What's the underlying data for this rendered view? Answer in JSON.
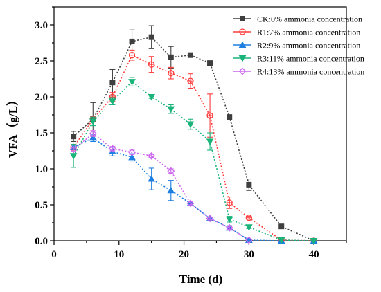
{
  "chart_data": {
    "type": "line",
    "title": "",
    "xlabel": "Time (d)",
    "ylabel": "VFA（g/L）",
    "xlim": [
      0,
      45
    ],
    "ylim": [
      0,
      3.25
    ],
    "xticks": [
      0,
      10,
      20,
      30,
      40
    ],
    "yticks": [
      0.0,
      0.5,
      1.0,
      1.5,
      2.0,
      2.5,
      3.0
    ],
    "grid": false,
    "legend_position": "top-right",
    "series": [
      {
        "name": "CK:0% ammonia concentration",
        "color": "#3f3f3f",
        "marker": "square",
        "x": [
          3,
          6,
          9,
          12,
          15,
          18,
          21,
          24,
          27,
          30,
          35,
          40
        ],
        "y": [
          1.45,
          1.69,
          2.2,
          2.77,
          2.83,
          2.55,
          2.58,
          2.47,
          1.72,
          0.78,
          0.2,
          0.0
        ],
        "err": [
          0.07,
          0.23,
          0.18,
          0.16,
          0.16,
          0.15,
          0.03,
          0.02,
          0.0,
          0.08,
          0.0,
          0.0
        ]
      },
      {
        "name": "R1:7% ammonia concentration",
        "color": "#ff3b3b",
        "marker": "circle",
        "x": [
          3,
          6,
          9,
          12,
          15,
          18,
          21,
          24,
          27,
          30,
          35,
          40
        ],
        "y": [
          1.3,
          1.69,
          2.0,
          2.58,
          2.45,
          2.33,
          2.22,
          1.74,
          0.53,
          0.32,
          0.01,
          0.0
        ],
        "err": [
          0.04,
          0.04,
          0.06,
          0.07,
          0.11,
          0.08,
          0.1,
          0.3,
          0.08,
          0.02,
          0.0,
          0.0
        ]
      },
      {
        "name": "R2:9% ammonia concentration",
        "color": "#1e7fe0",
        "marker": "triangle-up",
        "x": [
          3,
          6,
          9,
          12,
          15,
          18,
          21,
          24,
          27,
          30,
          35,
          40
        ],
        "y": [
          1.3,
          1.43,
          1.24,
          1.16,
          0.86,
          0.7,
          0.52,
          0.31,
          0.18,
          0.01,
          0.0,
          0.0
        ],
        "err": [
          0.03,
          0.05,
          0.06,
          0.05,
          0.15,
          0.14,
          0.02,
          0.02,
          0.03,
          0.0,
          0.0,
          0.0
        ]
      },
      {
        "name": "R3:11% ammonia concentration",
        "color": "#1ab47a",
        "marker": "triangle-down",
        "x": [
          3,
          6,
          9,
          12,
          15,
          18,
          21,
          24,
          27,
          30,
          35,
          40
        ],
        "y": [
          1.18,
          1.66,
          1.94,
          2.21,
          2.0,
          1.83,
          1.62,
          1.38,
          0.3,
          0.19,
          0.01,
          0.0
        ],
        "err": [
          0.16,
          0.06,
          0.05,
          0.06,
          0.02,
          0.06,
          0.07,
          0.12,
          0.04,
          0.02,
          0.0,
          0.0
        ]
      },
      {
        "name": "R4:13% ammonia concentration",
        "color": "#cc66ee",
        "marker": "diamond",
        "x": [
          3,
          6,
          9,
          12,
          15,
          18,
          21,
          24,
          27,
          30
        ],
        "y": [
          1.27,
          1.49,
          1.28,
          1.23,
          1.18,
          0.97,
          0.52,
          0.31,
          0.18,
          0.01
        ],
        "err": [
          0.03,
          0.04,
          0.03,
          0.03,
          0.02,
          0.03,
          0.02,
          0.02,
          0.02,
          0.0
        ]
      }
    ]
  }
}
